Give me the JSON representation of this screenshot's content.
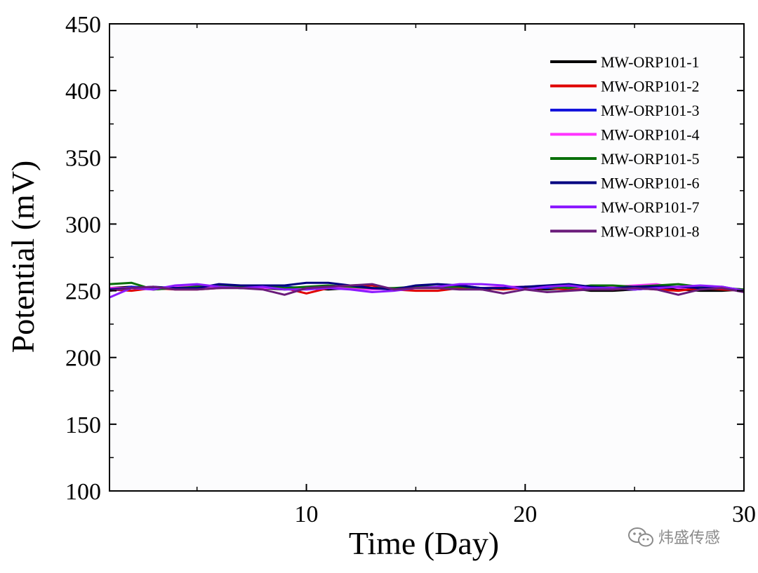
{
  "chart_data": {
    "type": "line",
    "title": "",
    "xlabel": "Time (Day)",
    "ylabel": "Potential (mV)",
    "xlim": [
      1,
      30
    ],
    "ylim": [
      100,
      450
    ],
    "xticks": [
      10,
      20,
      30
    ],
    "yticks": [
      100,
      150,
      200,
      250,
      300,
      350,
      400,
      450
    ],
    "grid": false,
    "legend_position": "top-right",
    "x": [
      1,
      2,
      3,
      4,
      5,
      6,
      7,
      8,
      9,
      10,
      11,
      12,
      13,
      14,
      15,
      16,
      17,
      18,
      19,
      20,
      21,
      22,
      23,
      24,
      25,
      26,
      27,
      28,
      29,
      30
    ],
    "series": [
      {
        "name": "MW-ORP101-1",
        "color": "#000000",
        "values": [
          252,
          253,
          251,
          252,
          252,
          253,
          252,
          252,
          251,
          252,
          251,
          252,
          252,
          251,
          252,
          252,
          253,
          251,
          252,
          252,
          251,
          252,
          250,
          250,
          251,
          252,
          251,
          250,
          250,
          251
        ]
      },
      {
        "name": "MW-ORP101-2",
        "color": "#e00000",
        "values": [
          251,
          250,
          252,
          251,
          251,
          252,
          253,
          253,
          252,
          248,
          252,
          253,
          254,
          251,
          250,
          250,
          252,
          252,
          251,
          252,
          252,
          251,
          252,
          251,
          252,
          251,
          250,
          252,
          251,
          250
        ]
      },
      {
        "name": "MW-ORP101-3",
        "color": "#1414dc",
        "values": [
          250,
          253,
          252,
          253,
          254,
          253,
          252,
          253,
          253,
          252,
          253,
          254,
          252,
          251,
          252,
          253,
          254,
          252,
          252,
          253,
          252,
          253,
          252,
          252,
          251,
          252,
          253,
          253,
          252,
          251
        ]
      },
      {
        "name": "MW-ORP101-4",
        "color": "#ff33ff",
        "values": [
          252,
          252,
          251,
          253,
          253,
          252,
          253,
          252,
          252,
          251,
          252,
          252,
          251,
          252,
          252,
          253,
          253,
          252,
          253,
          253,
          253,
          252,
          253,
          253,
          254,
          255,
          252,
          253,
          252,
          251
        ]
      },
      {
        "name": "MW-ORP101-5",
        "color": "#0a700a",
        "values": [
          255,
          256,
          251,
          252,
          253,
          254,
          253,
          254,
          252,
          253,
          254,
          253,
          252,
          252,
          253,
          253,
          253,
          252,
          252,
          253,
          253,
          252,
          254,
          254,
          253,
          254,
          255,
          253,
          252,
          251
        ]
      },
      {
        "name": "MW-ORP101-6",
        "color": "#000080",
        "values": [
          251,
          252,
          253,
          252,
          252,
          255,
          254,
          254,
          254,
          256,
          256,
          254,
          252,
          251,
          254,
          255,
          254,
          252,
          252,
          253,
          254,
          255,
          253,
          252,
          253,
          253,
          253,
          252,
          253,
          250
        ]
      },
      {
        "name": "MW-ORP101-7",
        "color": "#8c1aff",
        "values": [
          245,
          252,
          251,
          254,
          255,
          253,
          252,
          253,
          251,
          251,
          252,
          251,
          249,
          250,
          252,
          253,
          255,
          255,
          254,
          251,
          253,
          254,
          252,
          252,
          251,
          252,
          253,
          254,
          253,
          250
        ]
      },
      {
        "name": "MW-ORP101-8",
        "color": "#6a1b7a",
        "values": [
          250,
          252,
          253,
          251,
          251,
          252,
          252,
          251,
          247,
          252,
          253,
          254,
          255,
          251,
          252,
          252,
          251,
          251,
          248,
          251,
          249,
          250,
          251,
          251,
          252,
          251,
          247,
          251,
          252,
          249
        ]
      }
    ]
  },
  "watermark": {
    "text": "炜盛传感",
    "icon": "wechat-icon"
  }
}
